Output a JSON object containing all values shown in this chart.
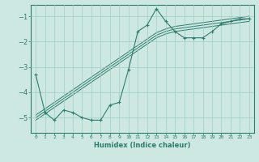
{
  "x": [
    0,
    1,
    2,
    3,
    4,
    5,
    6,
    7,
    8,
    9,
    10,
    11,
    12,
    13,
    14,
    15,
    16,
    17,
    18,
    19,
    20,
    21,
    22,
    23
  ],
  "y_main": [
    -3.3,
    -4.8,
    -5.1,
    -4.7,
    -4.8,
    -5.0,
    -5.1,
    -5.1,
    -4.5,
    -4.4,
    -3.1,
    -1.6,
    -1.35,
    -0.7,
    -1.2,
    -1.6,
    -1.85,
    -1.85,
    -1.85,
    -1.6,
    -1.3,
    -1.2,
    -1.1,
    -1.1
  ],
  "y_reg1": [
    -5.0,
    -4.75,
    -4.5,
    -4.25,
    -4.0,
    -3.75,
    -3.5,
    -3.25,
    -3.0,
    -2.75,
    -2.5,
    -2.25,
    -2.0,
    -1.75,
    -1.6,
    -1.5,
    -1.45,
    -1.4,
    -1.35,
    -1.3,
    -1.25,
    -1.2,
    -1.15,
    -1.1
  ],
  "y_reg2": [
    -5.1,
    -4.85,
    -4.6,
    -4.35,
    -4.1,
    -3.85,
    -3.6,
    -3.35,
    -3.1,
    -2.85,
    -2.6,
    -2.35,
    -2.1,
    -1.85,
    -1.7,
    -1.6,
    -1.55,
    -1.5,
    -1.45,
    -1.4,
    -1.35,
    -1.3,
    -1.25,
    -1.2
  ],
  "y_reg3": [
    -4.9,
    -4.65,
    -4.4,
    -4.15,
    -3.9,
    -3.65,
    -3.4,
    -3.15,
    -2.9,
    -2.65,
    -2.4,
    -2.15,
    -1.9,
    -1.65,
    -1.5,
    -1.4,
    -1.35,
    -1.3,
    -1.25,
    -1.2,
    -1.15,
    -1.1,
    -1.05,
    -1.0
  ],
  "line_color": "#2d7d6e",
  "bg_color": "#cde8e2",
  "grid_color": "#9ecec6",
  "xlabel": "Humidex (Indice chaleur)",
  "xtick_labels": [
    "0",
    "1",
    "2",
    "3",
    "4",
    "5",
    "6",
    "7",
    "8",
    "9",
    "10",
    "11",
    "12",
    "13",
    "14",
    "15",
    "16",
    "17",
    "18",
    "19",
    "20",
    "21",
    "22",
    "23"
  ],
  "ylim": [
    -5.6,
    -0.55
  ],
  "yticks": [
    -5,
    -4,
    -3,
    -2,
    -1
  ]
}
